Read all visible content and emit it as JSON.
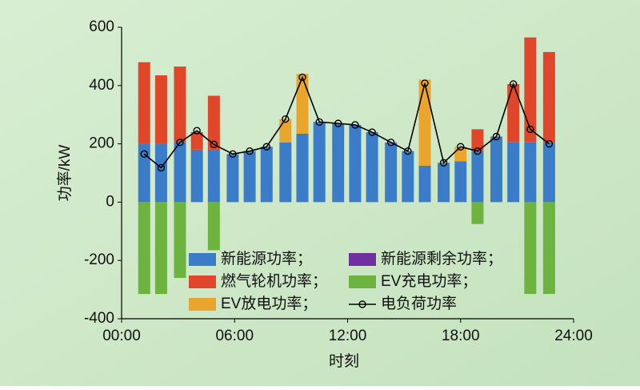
{
  "chart_data": {
    "type": "bar",
    "x_label": "时刻",
    "y_label": "功率/kW",
    "x": [
      1.2,
      2.1,
      3.1,
      4.0,
      4.9,
      5.9,
      6.8,
      7.7,
      8.7,
      9.6,
      10.5,
      11.5,
      12.4,
      13.3,
      14.3,
      15.2,
      16.1,
      17.1,
      18.0,
      18.9,
      19.9,
      20.8,
      21.7,
      22.7
    ],
    "xlim": [
      0,
      24
    ],
    "xticks": [
      {
        "value": 0,
        "label": "00:00"
      },
      {
        "value": 6,
        "label": "06:00"
      },
      {
        "value": 12,
        "label": "12:00"
      },
      {
        "value": 18,
        "label": "18:00"
      },
      {
        "value": 24,
        "label": "24:00"
      }
    ],
    "ylim": [
      -400,
      600
    ],
    "yticks": [
      -400,
      -200,
      0,
      200,
      400,
      600
    ],
    "series": [
      {
        "name": "新能源功率；",
        "type": "bar",
        "color": "#3b7cc8",
        "values": [
          200,
          200,
          205,
          180,
          180,
          165,
          175,
          190,
          205,
          235,
          275,
          270,
          265,
          240,
          205,
          175,
          125,
          135,
          140,
          175,
          225,
          205,
          205,
          205
        ]
      },
      {
        "name": "新能源剩余功率；",
        "type": "bar",
        "color": "#7030a0",
        "values": [
          0,
          0,
          0,
          0,
          0,
          0,
          0,
          0,
          0,
          0,
          0,
          0,
          0,
          0,
          0,
          0,
          0,
          0,
          0,
          0,
          0,
          0,
          0,
          0
        ]
      },
      {
        "name": "燃气轮机功率；",
        "type": "bar",
        "color": "#e0472a",
        "values": [
          280,
          235,
          260,
          60,
          185,
          0,
          0,
          0,
          0,
          0,
          0,
          0,
          0,
          0,
          0,
          0,
          0,
          0,
          0,
          75,
          0,
          200,
          360,
          310
        ]
      },
      {
        "name": "EV充电功率；",
        "type": "bar",
        "color": "#6cb33f",
        "values": [
          -315,
          -315,
          -260,
          0,
          -165,
          0,
          0,
          0,
          0,
          0,
          0,
          0,
          0,
          0,
          0,
          0,
          0,
          0,
          0,
          -75,
          0,
          0,
          -315,
          -315
        ]
      },
      {
        "name": "EV放电功率；",
        "type": "bar",
        "color": "#eaa52c",
        "values": [
          0,
          0,
          0,
          0,
          0,
          0,
          0,
          0,
          80,
          205,
          0,
          0,
          0,
          0,
          0,
          0,
          295,
          0,
          50,
          0,
          0,
          0,
          0,
          0
        ]
      },
      {
        "name": "电负荷功率",
        "type": "line",
        "color": "#000000",
        "values": [
          165,
          118,
          205,
          245,
          198,
          165,
          175,
          190,
          285,
          428,
          275,
          270,
          265,
          240,
          205,
          175,
          408,
          135,
          190,
          175,
          225,
          405,
          250,
          200
        ]
      }
    ]
  }
}
